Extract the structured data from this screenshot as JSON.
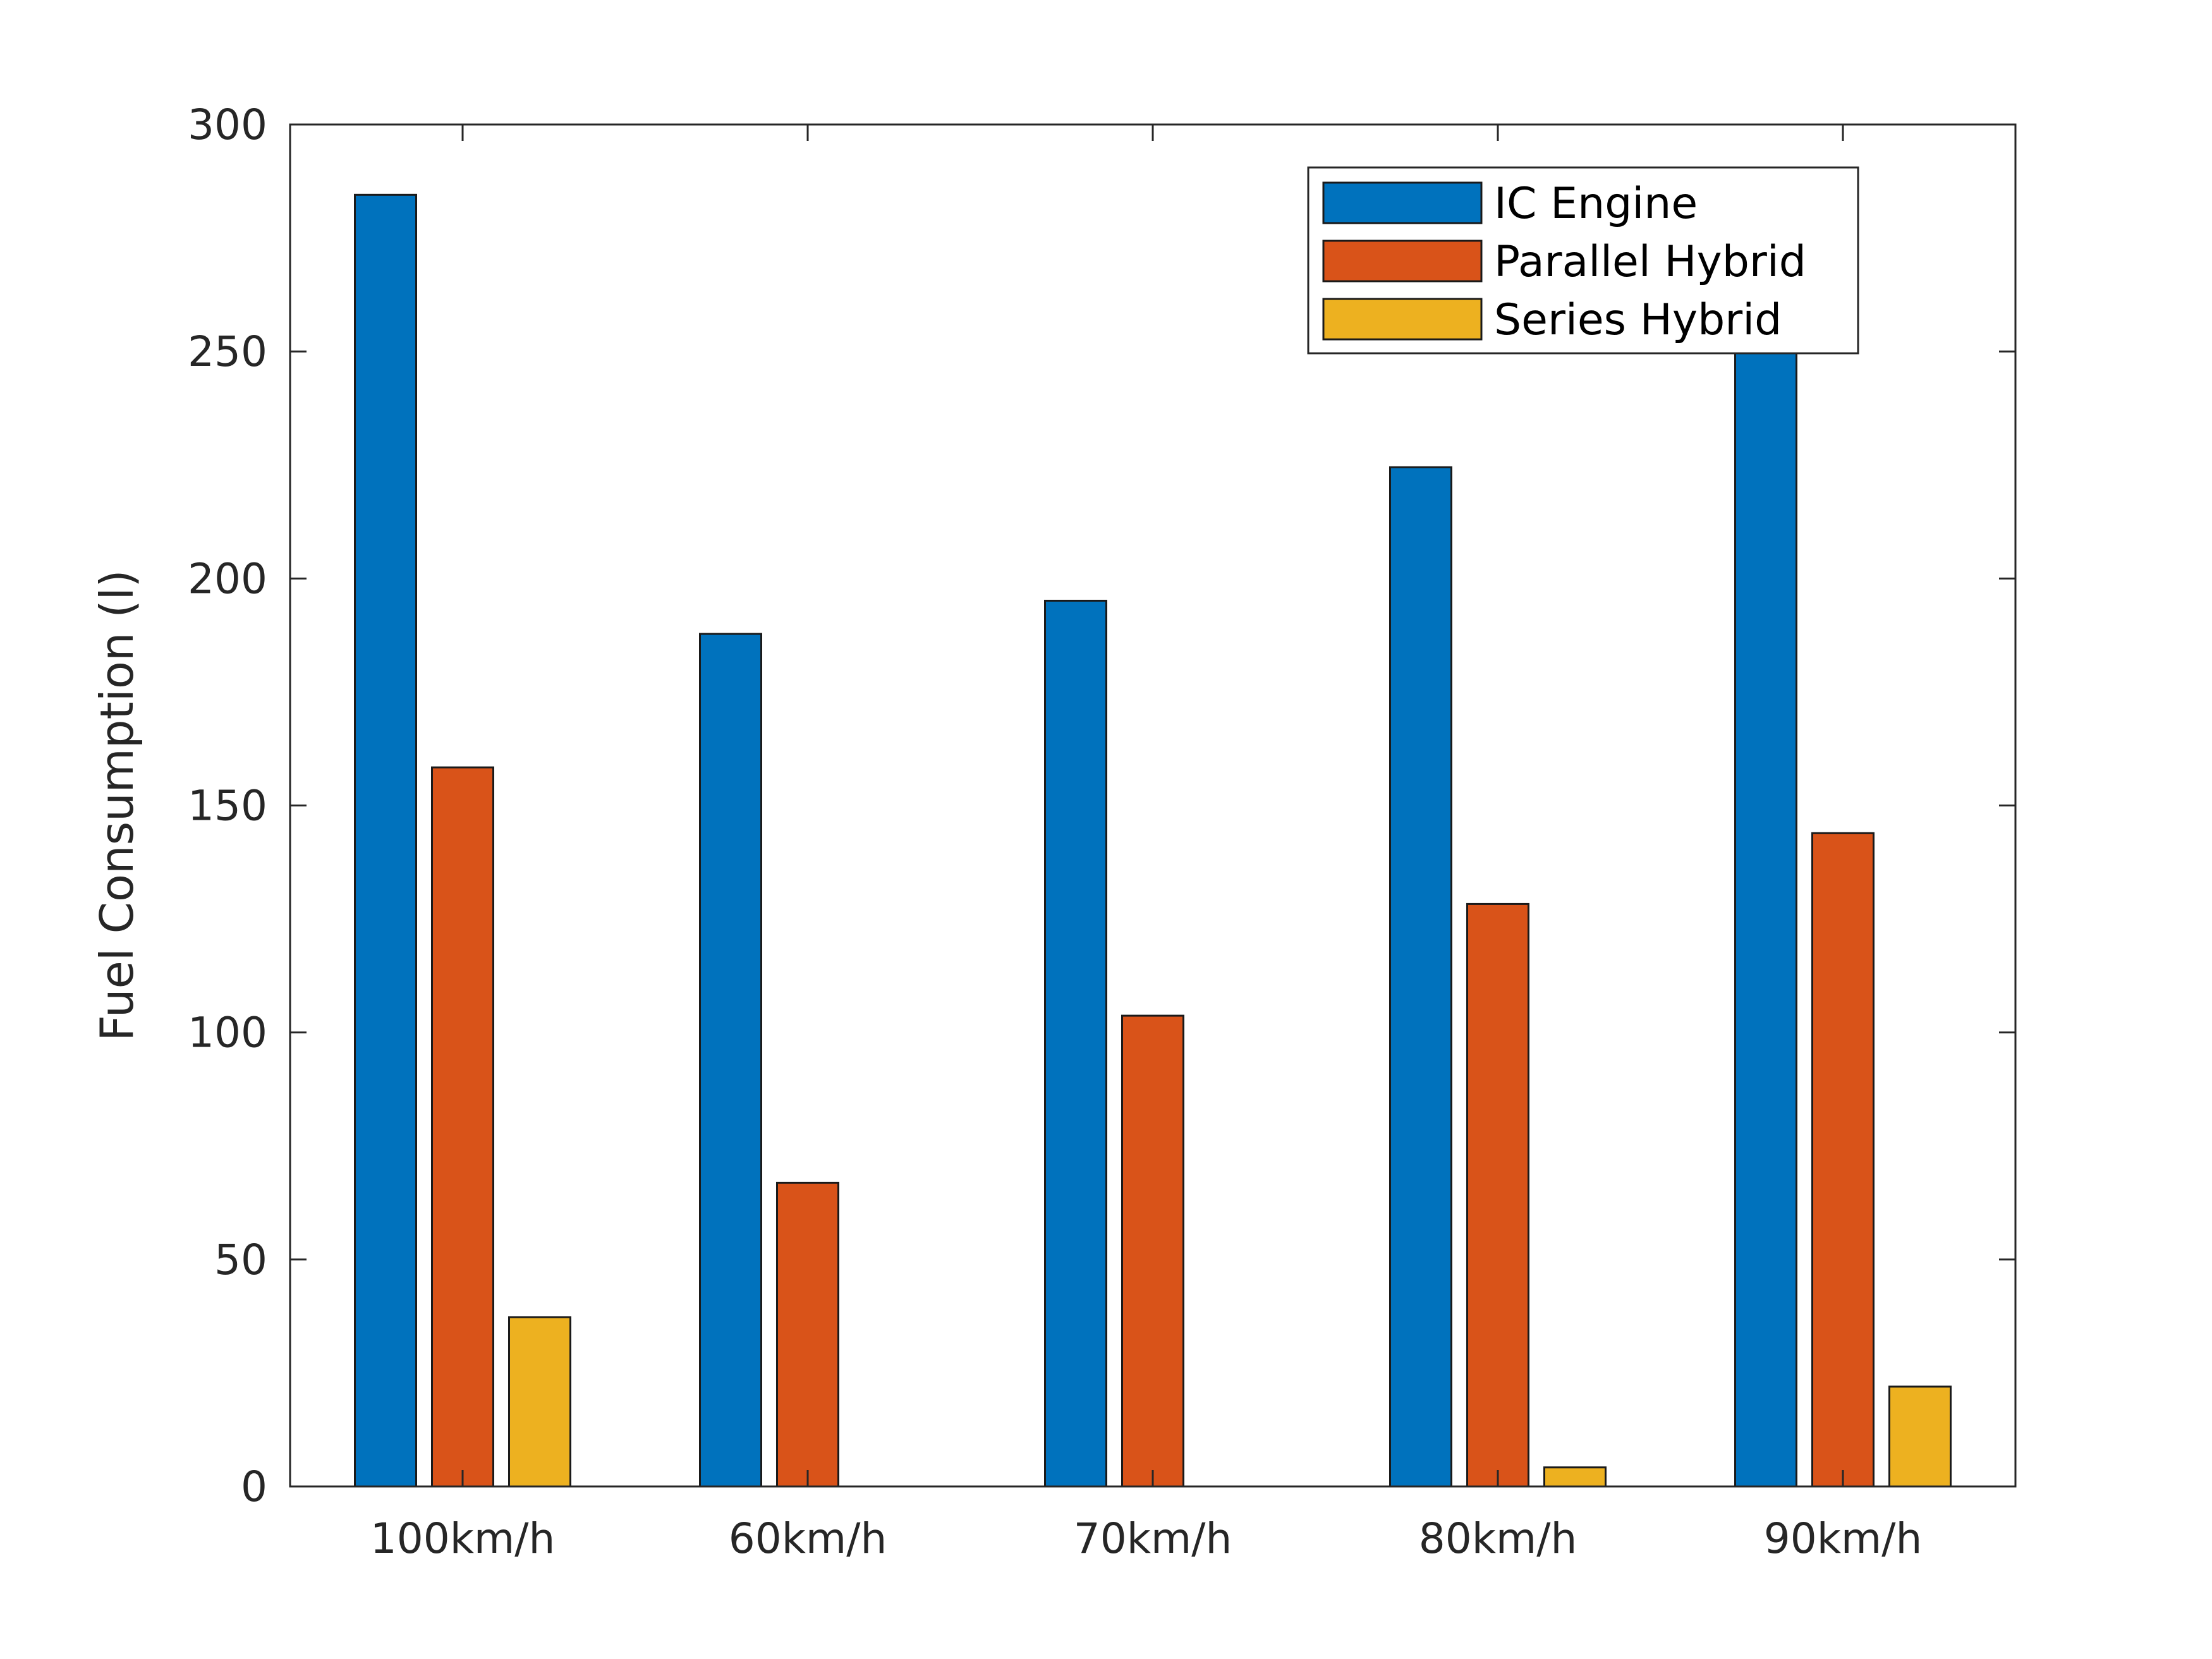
{
  "chart_data": {
    "type": "bar",
    "title": "",
    "xlabel": "",
    "ylabel": "Fuel Consumption (l)",
    "categories": [
      "100km/h",
      "60km/h",
      "70km/h",
      "80km/h",
      "90km/h"
    ],
    "series": [
      {
        "name": "IC Engine",
        "color": "#0072BD",
        "values": [
          284.5,
          187.8,
          195.1,
          224.5,
          252.5
        ]
      },
      {
        "name": "Parallel Hybrid",
        "color": "#D95319",
        "values": [
          158.4,
          66.9,
          103.7,
          128.3,
          143.9
        ]
      },
      {
        "name": "Series Hybrid",
        "color": "#EDB120",
        "values": [
          37.3,
          0,
          0,
          4.2,
          22.0
        ]
      }
    ],
    "ylim": [
      0,
      300
    ],
    "yticks": [
      0,
      50,
      100,
      150,
      200,
      250,
      300
    ],
    "grid": false,
    "legend_position": "top-right"
  }
}
